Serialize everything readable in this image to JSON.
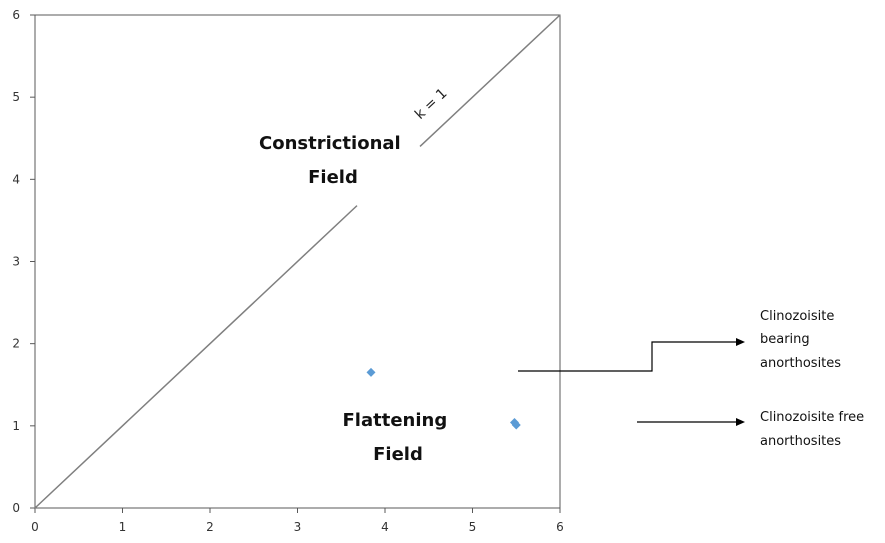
{
  "chart_data": {
    "type": "scatter",
    "xlim": [
      0,
      6
    ],
    "ylim": [
      0,
      6
    ],
    "x_ticks": [
      "0",
      "1",
      "2",
      "3",
      "4",
      "5",
      "6"
    ],
    "y_ticks": [
      "0",
      "1",
      "2",
      "3",
      "4",
      "5",
      "6"
    ],
    "grid": false,
    "reference_line": {
      "label": "k = 1",
      "from": [
        0,
        0
      ],
      "to": [
        6,
        6
      ]
    },
    "points": [
      {
        "x": 3.84,
        "y": 1.65
      },
      {
        "x": 5.48,
        "y": 1.04
      },
      {
        "x": 5.5,
        "y": 1.01
      }
    ],
    "marker_color": "#5b9bd5",
    "annotations": {
      "constrictional": [
        "Constrictional",
        "Field"
      ],
      "flattening": [
        "Flattening",
        "Field"
      ],
      "legend_bearing": [
        "Clinozoisite",
        "bearing",
        "anorthosites"
      ],
      "legend_free": [
        "Clinozoisite free",
        "anorthosites"
      ]
    }
  }
}
